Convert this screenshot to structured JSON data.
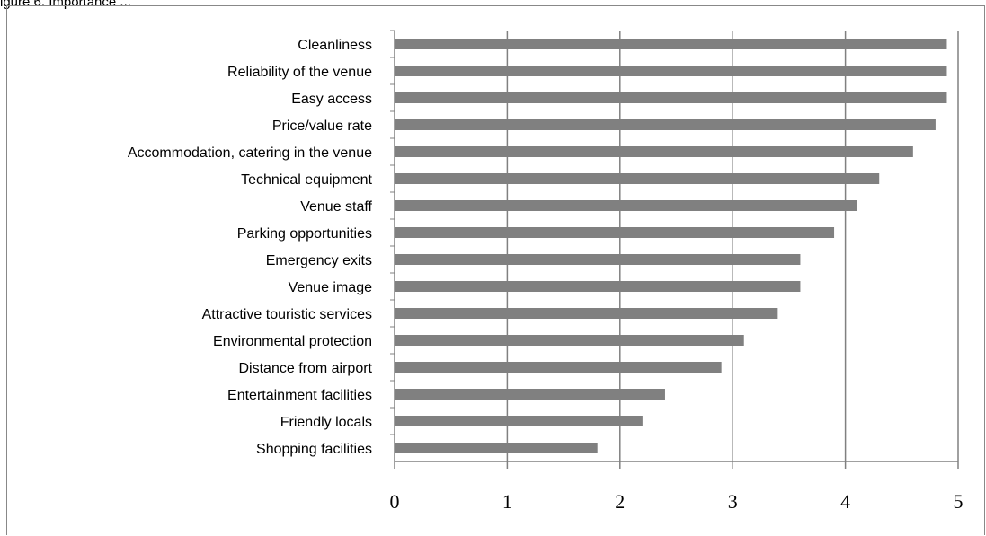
{
  "header": {
    "partial_text": "igure 6. Importance ..."
  },
  "chart_data": {
    "type": "bar",
    "orientation": "horizontal",
    "title": "",
    "xlabel": "",
    "ylabel": "",
    "categories": [
      "Cleanliness",
      "Reliability of the venue",
      "Easy access",
      "Price/value rate",
      "Accommodation, catering in the venue",
      "Technical equipment",
      "Venue staff",
      "Parking opportunities",
      "Emergency exits",
      "Venue image",
      "Attractive touristic services",
      "Environmental protection",
      "Distance from airport",
      "Entertainment facilities",
      "Friendly locals",
      "Shopping facilities"
    ],
    "values": [
      4.9,
      4.9,
      4.9,
      4.8,
      4.6,
      4.3,
      4.1,
      3.9,
      3.6,
      3.6,
      3.4,
      3.1,
      2.9,
      2.4,
      2.2,
      1.8
    ],
    "xlim": [
      0,
      5
    ],
    "xticks": [
      "0",
      "1",
      "2",
      "3",
      "4",
      "5"
    ],
    "grid": "vertical",
    "legend": "none",
    "bar_color": "#808080",
    "grid_color": "#808080"
  }
}
